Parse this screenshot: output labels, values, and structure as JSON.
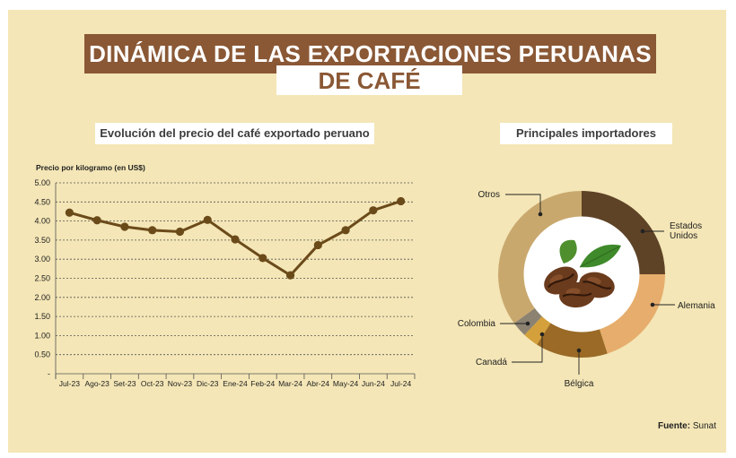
{
  "title": {
    "line1": "DINÁMICA DE LAS EXPORTACIONES PERUANAS",
    "line2": "DE CAFÉ"
  },
  "colors": {
    "background": "#f4e6b6",
    "title_bar": "#8a5835",
    "line": "#6b4a1a"
  },
  "source": {
    "label": "Fuente:",
    "value": "Sunat"
  },
  "chart_data": [
    {
      "type": "line",
      "title": "Evolución del precio del café exportado peruano",
      "ylabel": "Precio  por kilogramo (en US$)",
      "categories": [
        "Jul-23",
        "Ago-23",
        "Set-23",
        "Oct-23",
        "Nov-23",
        "Dic-23",
        "Ene-24",
        "Feb-24",
        "Mar-24",
        "Abr-24",
        "May-24",
        "Jun-24",
        "Jul-24"
      ],
      "values": [
        4.22,
        4.02,
        3.85,
        3.76,
        3.72,
        4.03,
        3.52,
        3.03,
        2.58,
        3.37,
        3.76,
        4.28,
        4.52
      ],
      "ylim": [
        0,
        5
      ],
      "yticks": [
        "-",
        "0.50",
        "1.00",
        "1.50",
        "2.00",
        "2.50",
        "3.00",
        "3.50",
        "4.00",
        "4.50",
        "5.00"
      ],
      "grid": true
    },
    {
      "type": "pie",
      "title": "Principales importadores",
      "slices": [
        {
          "label": "Estados Unidos",
          "value": 25,
          "color": "#5e4327"
        },
        {
          "label": "Alemania",
          "value": 20,
          "color": "#e6ad6c"
        },
        {
          "label": "Bélgica",
          "value": 14,
          "color": "#9a6a26"
        },
        {
          "label": "Canadá",
          "value": 3,
          "color": "#d3a03b"
        },
        {
          "label": "Colombia",
          "value": 3,
          "color": "#8c8272"
        },
        {
          "label": "Otros",
          "value": 35,
          "color": "#c9a86e"
        }
      ]
    }
  ]
}
